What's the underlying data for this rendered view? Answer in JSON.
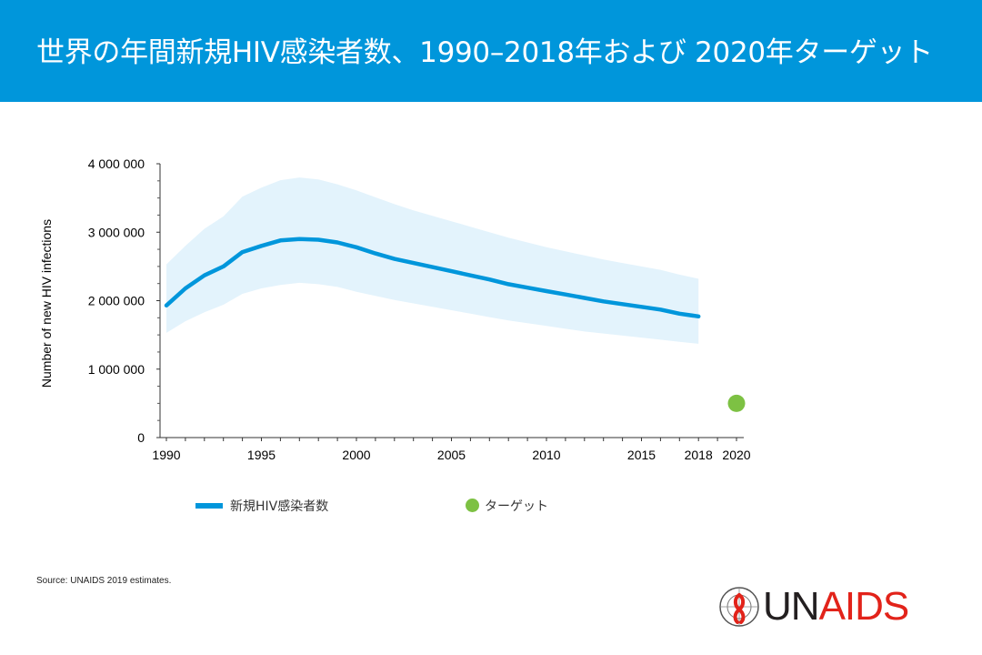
{
  "header": {
    "title": "世界の年間新規HIV感染者数、1990–2018年および 2020年ターゲット"
  },
  "colors": {
    "header_bg": "#0096db",
    "line": "#0096db",
    "band": "#e3f3fc",
    "target": "#7dc143",
    "logo_red": "#e2231a"
  },
  "chart_data": {
    "type": "line",
    "title": "世界の年間新規HIV感染者数、1990–2018年および 2020年ターゲット",
    "xlabel": "",
    "ylabel": "Number of new HIV infections",
    "xlim": [
      1990,
      2020
    ],
    "ylim": [
      0,
      4000000
    ],
    "x_ticks": [
      1990,
      1995,
      2000,
      2005,
      2010,
      2015,
      2018,
      2020
    ],
    "x_tick_labels": [
      "1990",
      "1995",
      "2000",
      "2005",
      "2010",
      "2015",
      "2018",
      "2020"
    ],
    "y_ticks": [
      0,
      1000000,
      2000000,
      3000000,
      4000000
    ],
    "y_tick_labels": [
      "0",
      "1 000 000",
      "2 000 000",
      "3 000 000",
      "4 000 000"
    ],
    "series": [
      {
        "name": "新規HIV感染者数",
        "x": [
          1990,
          1991,
          1992,
          1993,
          1994,
          1995,
          1996,
          1997,
          1998,
          1999,
          2000,
          2001,
          2002,
          2003,
          2004,
          2005,
          2006,
          2007,
          2008,
          2009,
          2010,
          2011,
          2012,
          2013,
          2014,
          2015,
          2016,
          2017,
          2018
        ],
        "values": [
          1930000,
          2180000,
          2370000,
          2500000,
          2710000,
          2800000,
          2880000,
          2900000,
          2890000,
          2850000,
          2780000,
          2690000,
          2610000,
          2550000,
          2490000,
          2430000,
          2370000,
          2310000,
          2240000,
          2190000,
          2140000,
          2090000,
          2040000,
          1990000,
          1950000,
          1910000,
          1870000,
          1810000,
          1770000
        ],
        "lower": [
          1530000,
          1700000,
          1830000,
          1940000,
          2100000,
          2180000,
          2230000,
          2260000,
          2240000,
          2200000,
          2130000,
          2070000,
          2010000,
          1960000,
          1910000,
          1860000,
          1810000,
          1760000,
          1710000,
          1670000,
          1630000,
          1590000,
          1550000,
          1520000,
          1490000,
          1460000,
          1430000,
          1400000,
          1370000
        ],
        "upper": [
          2530000,
          2800000,
          3050000,
          3230000,
          3520000,
          3650000,
          3760000,
          3800000,
          3770000,
          3700000,
          3610000,
          3510000,
          3410000,
          3320000,
          3240000,
          3160000,
          3080000,
          3000000,
          2920000,
          2850000,
          2780000,
          2720000,
          2660000,
          2600000,
          2550000,
          2500000,
          2450000,
          2380000,
          2320000
        ]
      },
      {
        "name": "ターゲット",
        "type": "point",
        "x": [
          2020
        ],
        "values": [
          500000
        ]
      }
    ]
  },
  "legend": {
    "line_label": "新規HIV感染者数",
    "target_label": "ターゲット"
  },
  "source": "Source: UNAIDS  2019 estimates.",
  "logo": {
    "un": "UN",
    "aids": "AIDS"
  }
}
